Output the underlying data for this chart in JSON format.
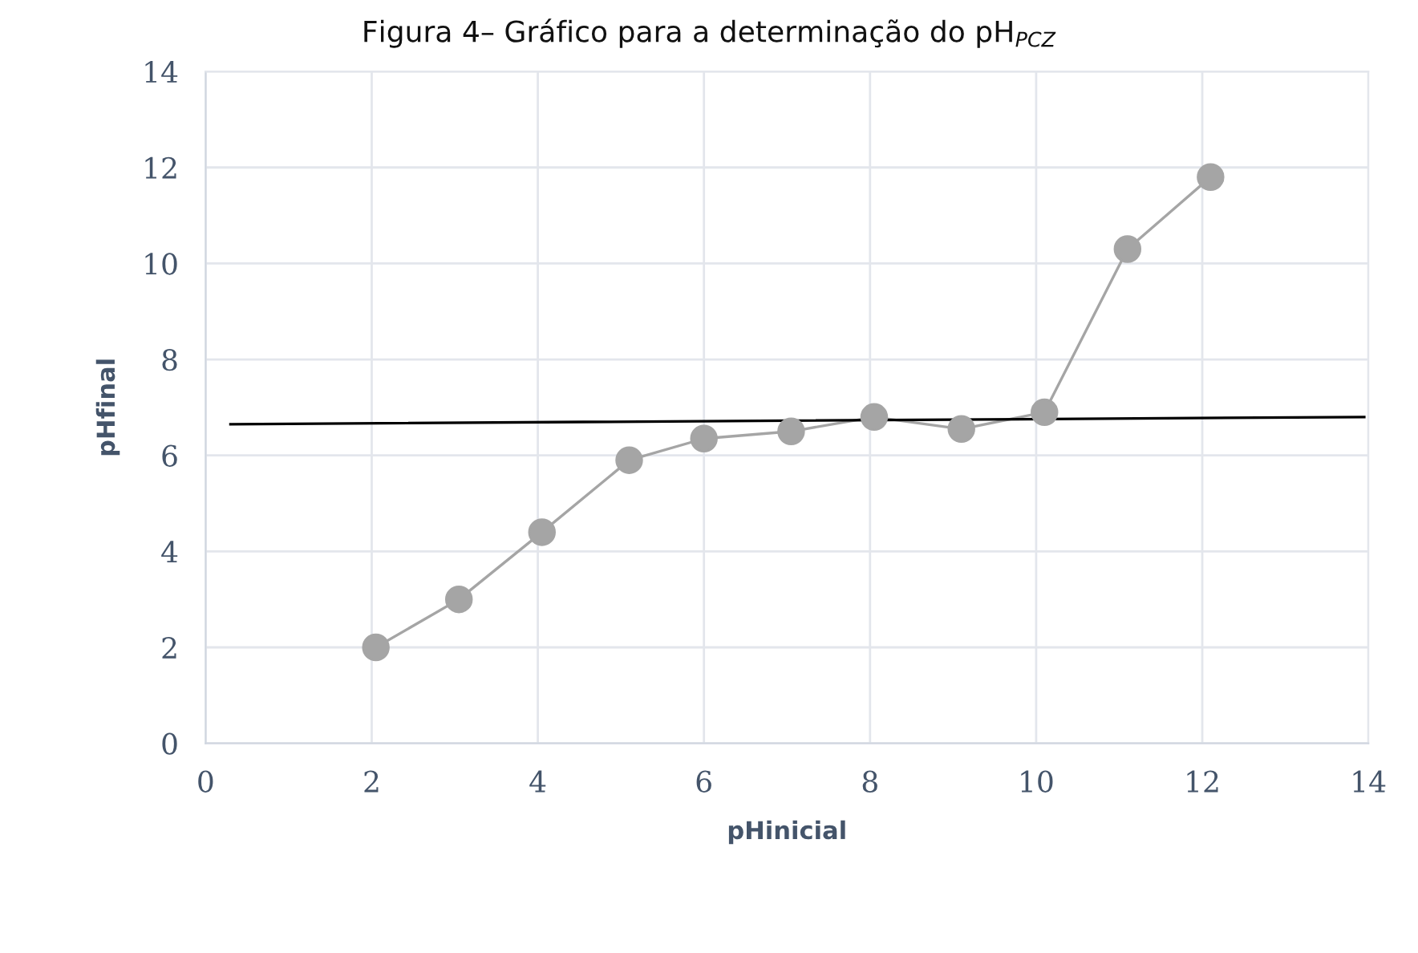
{
  "chart_data": {
    "type": "line",
    "title": "Figura 4– Gráfico para a determinação do pH$_{PCZ}$",
    "xlabel": "pHinicial",
    "ylabel": "pHfinal",
    "series": [
      {
        "color": "#a5a5a5",
        "marker": "circle",
        "x": [
          2.05,
          3.05,
          4.05,
          5.1,
          6.0,
          7.05,
          8.05,
          9.1,
          10.1,
          11.1,
          12.1
        ],
        "values": [
          2.0,
          3.0,
          4.4,
          5.9,
          6.35,
          6.5,
          6.8,
          6.55,
          6.9,
          10.3,
          11.8
        ]
      },
      {
        "color": "#000000",
        "marker": "none",
        "x": [
          0.3,
          13.95
        ],
        "values": [
          6.65,
          6.8
        ]
      }
    ],
    "xlim": [
      0,
      14
    ],
    "ylim": [
      0,
      14
    ],
    "xticks": [
      0,
      2,
      4,
      6,
      8,
      10,
      12,
      14
    ],
    "yticks": [
      0,
      2,
      4,
      6,
      8,
      10,
      12,
      14
    ],
    "grid": true
  }
}
